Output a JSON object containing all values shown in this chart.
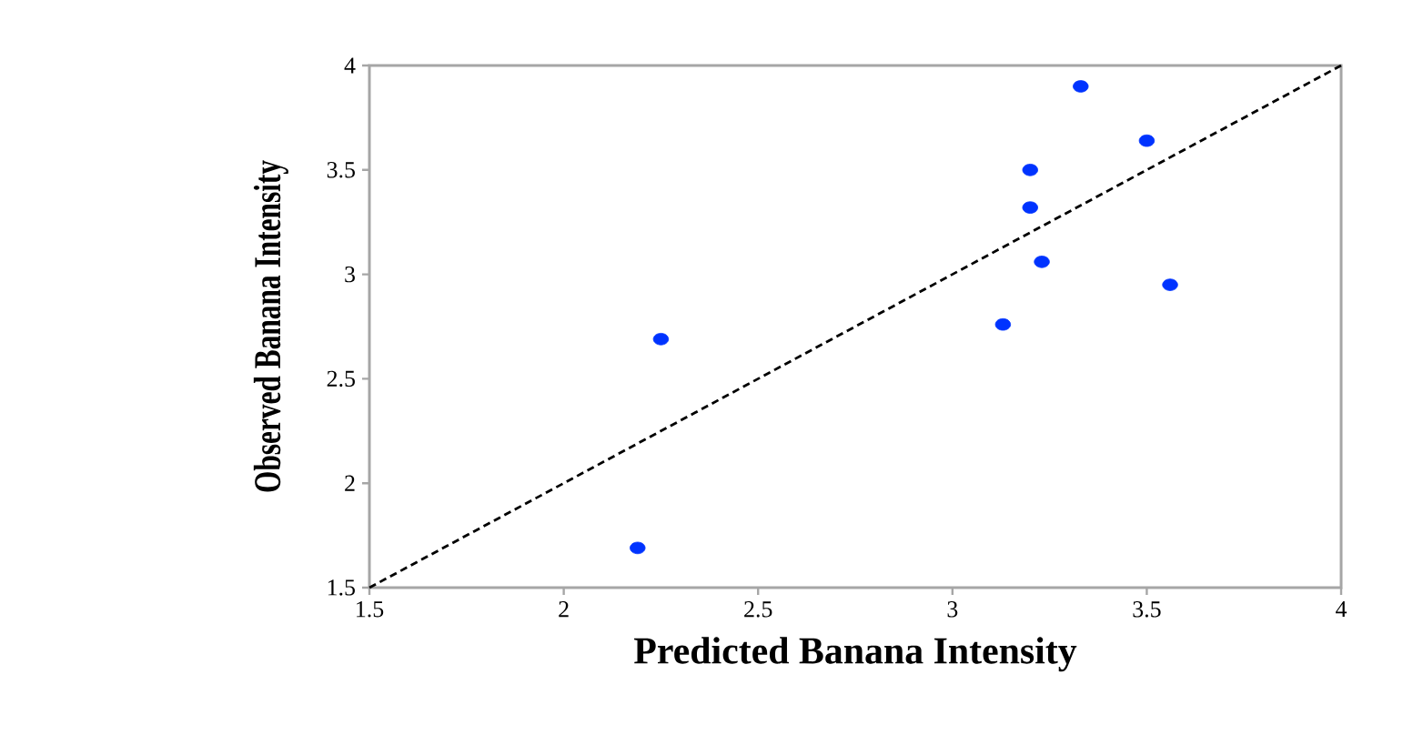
{
  "chart_data": {
    "type": "scatter",
    "xlabel": "Predicted Banana Intensity",
    "ylabel": "Observed Banana Intensity",
    "xlim": [
      1.5,
      4
    ],
    "ylim": [
      1.5,
      4
    ],
    "xticks": [
      1.5,
      2,
      2.5,
      3,
      3.5,
      4
    ],
    "yticks": [
      1.5,
      2,
      2.5,
      3,
      3.5,
      4
    ],
    "grid": false,
    "series": [
      {
        "color": "#0033ff",
        "marker": "circle",
        "x": [
          3.33,
          3.5,
          3.2,
          3.2,
          3.23,
          3.56,
          3.13,
          2.25,
          2.19
        ],
        "values": [
          3.9,
          3.64,
          3.5,
          3.32,
          3.06,
          2.95,
          2.76,
          2.69,
          1.69
        ]
      },
      {
        "type": "line",
        "color": "#000000",
        "line_style": "dashed",
        "marker": "none",
        "x": [
          1.5,
          4
        ],
        "values": [
          1.5,
          4
        ]
      }
    ]
  }
}
